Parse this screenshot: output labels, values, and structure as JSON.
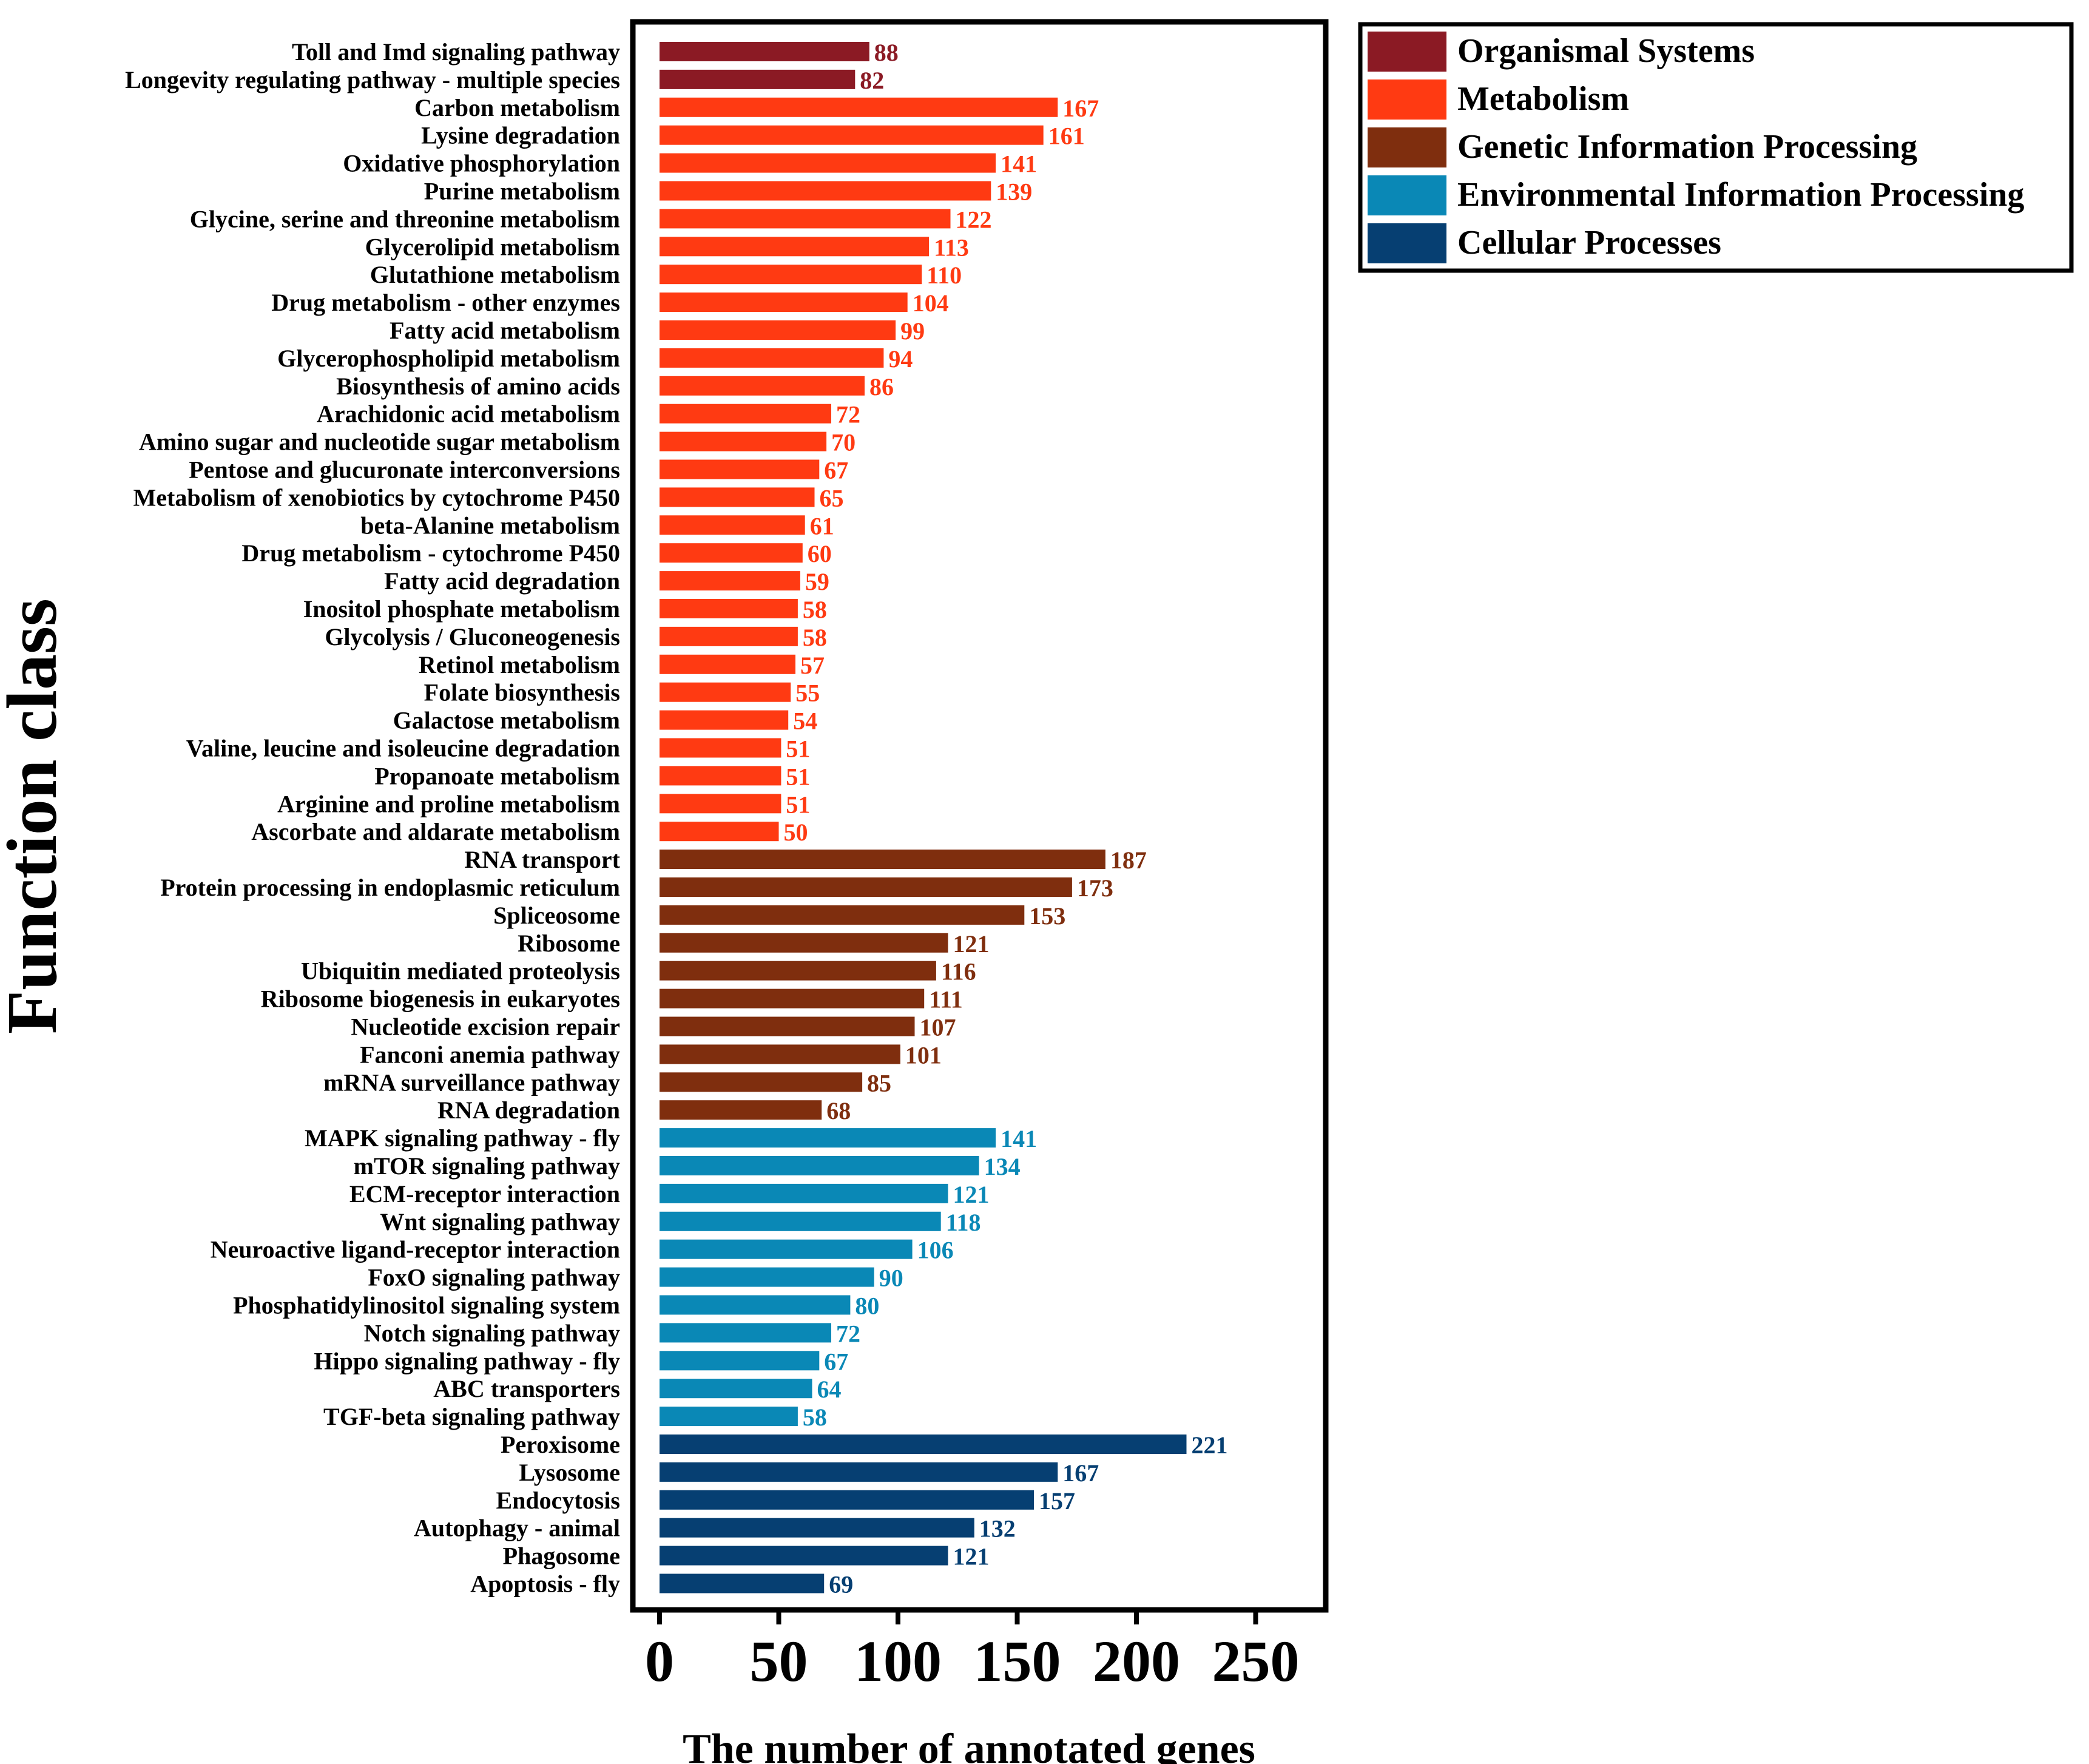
{
  "chart_data": {
    "type": "bar",
    "orientation": "horizontal",
    "xlabel": "The number of annotated genes",
    "ylabel": "Function class",
    "xlim": [
      0,
      280
    ],
    "xticks": [
      0,
      50,
      100,
      150,
      200,
      250
    ],
    "grid": false,
    "legend_position": "outside-top-right",
    "legend": [
      {
        "key": "org",
        "label": "Organismal Systems",
        "color": "#8B1A24"
      },
      {
        "key": "met",
        "label": "Metabolism",
        "color": "#FF3A12"
      },
      {
        "key": "gen",
        "label": "Genetic Information Processing",
        "color": "#7F2E0E"
      },
      {
        "key": "env",
        "label": "Environmental Information Processing",
        "color": "#0A88B6"
      },
      {
        "key": "cel",
        "label": "Cellular Processes",
        "color": "#063F72"
      }
    ],
    "bars": [
      {
        "label": "Toll and Imd signaling pathway",
        "value": 88,
        "group": "org"
      },
      {
        "label": "Longevity regulating pathway - multiple species",
        "value": 82,
        "group": "org"
      },
      {
        "label": "Carbon metabolism",
        "value": 167,
        "group": "met"
      },
      {
        "label": "Lysine degradation",
        "value": 161,
        "group": "met"
      },
      {
        "label": "Oxidative phosphorylation",
        "value": 141,
        "group": "met"
      },
      {
        "label": "Purine metabolism",
        "value": 139,
        "group": "met"
      },
      {
        "label": "Glycine, serine and threonine metabolism",
        "value": 122,
        "group": "met"
      },
      {
        "label": "Glycerolipid metabolism",
        "value": 113,
        "group": "met"
      },
      {
        "label": "Glutathione metabolism",
        "value": 110,
        "group": "met"
      },
      {
        "label": "Drug metabolism - other enzymes",
        "value": 104,
        "group": "met"
      },
      {
        "label": "Fatty acid metabolism",
        "value": 99,
        "group": "met"
      },
      {
        "label": "Glycerophospholipid metabolism",
        "value": 94,
        "group": "met"
      },
      {
        "label": "Biosynthesis of amino acids",
        "value": 86,
        "group": "met"
      },
      {
        "label": "Arachidonic acid metabolism",
        "value": 72,
        "group": "met"
      },
      {
        "label": "Amino sugar and nucleotide sugar metabolism",
        "value": 70,
        "group": "met"
      },
      {
        "label": "Pentose and glucuronate interconversions",
        "value": 67,
        "group": "met"
      },
      {
        "label": "Metabolism of xenobiotics by cytochrome P450",
        "value": 65,
        "group": "met"
      },
      {
        "label": "beta-Alanine metabolism",
        "value": 61,
        "group": "met"
      },
      {
        "label": "Drug metabolism - cytochrome P450",
        "value": 60,
        "group": "met"
      },
      {
        "label": "Fatty acid degradation",
        "value": 59,
        "group": "met"
      },
      {
        "label": "Inositol phosphate metabolism",
        "value": 58,
        "group": "met"
      },
      {
        "label": "Glycolysis / Gluconeogenesis",
        "value": 58,
        "group": "met"
      },
      {
        "label": "Retinol metabolism",
        "value": 57,
        "group": "met"
      },
      {
        "label": "Folate biosynthesis",
        "value": 55,
        "group": "met"
      },
      {
        "label": "Galactose metabolism",
        "value": 54,
        "group": "met"
      },
      {
        "label": "Valine, leucine and isoleucine degradation",
        "value": 51,
        "group": "met"
      },
      {
        "label": "Propanoate metabolism",
        "value": 51,
        "group": "met"
      },
      {
        "label": "Arginine and proline metabolism",
        "value": 51,
        "group": "met"
      },
      {
        "label": "Ascorbate and aldarate metabolism",
        "value": 50,
        "group": "met"
      },
      {
        "label": "RNA transport",
        "value": 187,
        "group": "gen"
      },
      {
        "label": "Protein processing in endoplasmic reticulum",
        "value": 173,
        "group": "gen"
      },
      {
        "label": "Spliceosome",
        "value": 153,
        "group": "gen"
      },
      {
        "label": "Ribosome",
        "value": 121,
        "group": "gen"
      },
      {
        "label": "Ubiquitin mediated proteolysis",
        "value": 116,
        "group": "gen"
      },
      {
        "label": "Ribosome biogenesis in eukaryotes",
        "value": 111,
        "group": "gen"
      },
      {
        "label": "Nucleotide excision repair",
        "value": 107,
        "group": "gen"
      },
      {
        "label": "Fanconi anemia pathway",
        "value": 101,
        "group": "gen"
      },
      {
        "label": "mRNA surveillance pathway",
        "value": 85,
        "group": "gen"
      },
      {
        "label": "RNA degradation",
        "value": 68,
        "group": "gen"
      },
      {
        "label": "MAPK signaling pathway - fly",
        "value": 141,
        "group": "env"
      },
      {
        "label": "mTOR signaling pathway",
        "value": 134,
        "group": "env"
      },
      {
        "label": "ECM-receptor interaction",
        "value": 121,
        "group": "env"
      },
      {
        "label": "Wnt signaling pathway",
        "value": 118,
        "group": "env"
      },
      {
        "label": "Neuroactive ligand-receptor interaction",
        "value": 106,
        "group": "env"
      },
      {
        "label": "FoxO signaling pathway",
        "value": 90,
        "group": "env"
      },
      {
        "label": "Phosphatidylinositol signaling system",
        "value": 80,
        "group": "env"
      },
      {
        "label": "Notch signaling pathway",
        "value": 72,
        "group": "env"
      },
      {
        "label": "Hippo signaling pathway - fly",
        "value": 67,
        "group": "env"
      },
      {
        "label": "ABC transporters",
        "value": 64,
        "group": "env"
      },
      {
        "label": "TGF-beta signaling pathway",
        "value": 58,
        "group": "env"
      },
      {
        "label": "Peroxisome",
        "value": 221,
        "group": "cel"
      },
      {
        "label": "Lysosome",
        "value": 167,
        "group": "cel"
      },
      {
        "label": "Endocytosis",
        "value": 157,
        "group": "cel"
      },
      {
        "label": "Autophagy - animal",
        "value": 132,
        "group": "cel"
      },
      {
        "label": "Phagosome",
        "value": 121,
        "group": "cel"
      },
      {
        "label": "Apoptosis - fly",
        "value": 69,
        "group": "cel"
      }
    ]
  }
}
